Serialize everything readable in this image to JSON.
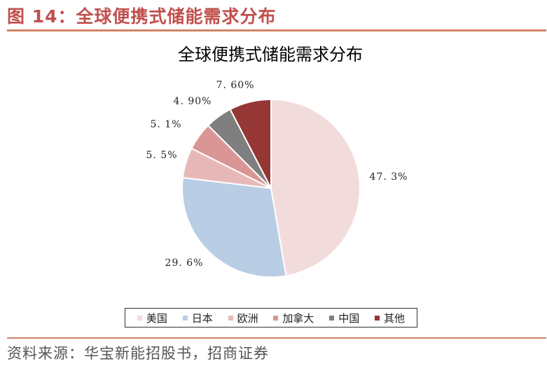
{
  "figure": {
    "heading": "图 14：全球便携式储能需求分布",
    "source": "资料来源：华宝新能招股书，招商证券"
  },
  "chart_data": {
    "type": "pie",
    "title": "全球便携式储能需求分布",
    "slices": [
      {
        "name": "美国",
        "value": 47.3,
        "label": "47. 3%",
        "color": "#f2dcdb"
      },
      {
        "name": "日本",
        "value": 29.6,
        "label": "29. 6%",
        "color": "#b9cde5"
      },
      {
        "name": "欧洲",
        "value": 5.5,
        "label": "5. 5%",
        "color": "#e6b9b8"
      },
      {
        "name": "加拿大",
        "value": 5.1,
        "label": "5. 1%",
        "color": "#d99694"
      },
      {
        "name": "中国",
        "value": 4.9,
        "label": "4. 90%",
        "color": "#7f7f7f"
      },
      {
        "name": "其他",
        "value": 7.6,
        "label": "7. 60%",
        "color": "#953735"
      }
    ],
    "legend_position": "bottom"
  }
}
